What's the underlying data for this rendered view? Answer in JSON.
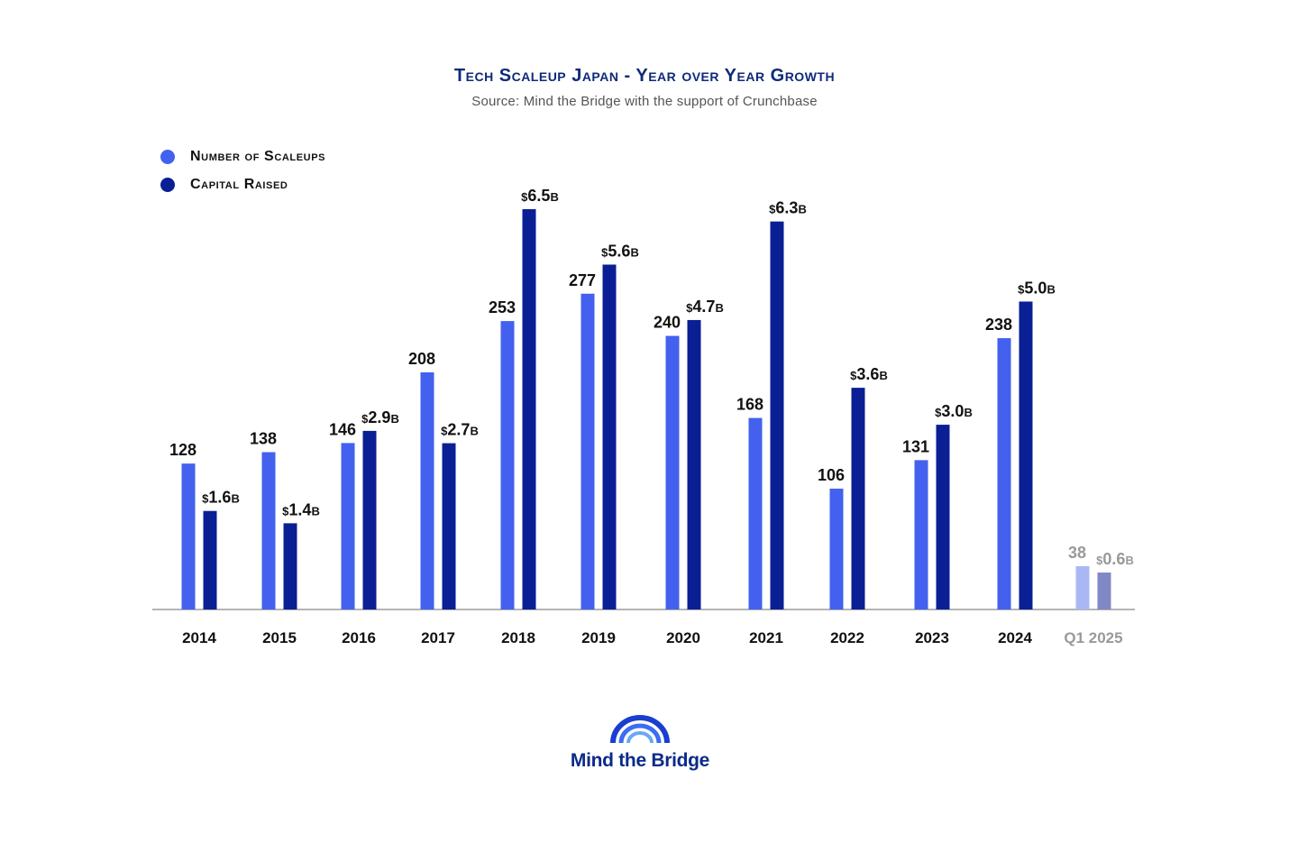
{
  "chart_data": {
    "type": "bar",
    "title": "Tech Scaleup Japan - Year over Year Growth",
    "subtitle": "Source: Mind the Bridge with the support of Crunchbase",
    "categories": [
      "2014",
      "2015",
      "2016",
      "2017",
      "2018",
      "2019",
      "2020",
      "2021",
      "2022",
      "2023",
      "2024",
      "Q1 2025"
    ],
    "series": [
      {
        "name": "Number of Scaleups",
        "color": "#4361ee",
        "values": [
          128,
          138,
          146,
          208,
          253,
          277,
          240,
          168,
          106,
          131,
          238,
          38
        ],
        "labels": [
          "128",
          "138",
          "146",
          "208",
          "253",
          "277",
          "240",
          "168",
          "106",
          "131",
          "238",
          "38"
        ]
      },
      {
        "name": "Capital Raised",
        "color": "#0b1f94",
        "values": [
          1.6,
          1.4,
          2.9,
          2.7,
          6.5,
          5.6,
          4.7,
          6.3,
          3.6,
          3.0,
          5.0,
          0.6
        ],
        "labels": [
          "$1.6B",
          "$1.4B",
          "$2.9B",
          "$2.7B",
          "$6.5B",
          "$5.6B",
          "$4.7B",
          "$6.3B",
          "$3.6B",
          "$3.0B",
          "$5.0B",
          "$0.6B"
        ]
      }
    ],
    "faded_categories": [
      "Q1 2025"
    ],
    "faded_colors": {
      "scaleups": "#a9b8f5",
      "capital": "#8088c6",
      "label": "#999999"
    },
    "legend_position": "top-left",
    "grid": false
  },
  "logo": {
    "text": "Mind the Bridge"
  }
}
